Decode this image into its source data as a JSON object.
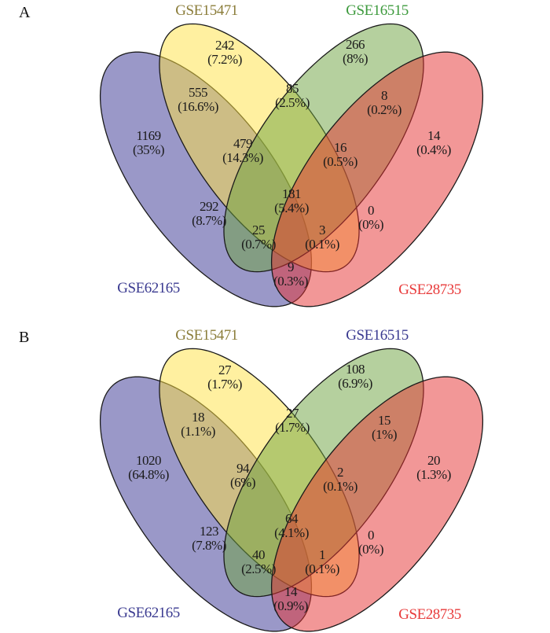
{
  "colors": {
    "GSE62165": "#353191",
    "GSE15471": "#ffe141",
    "GSE16515": "#6ba13d",
    "GSE28735": "#e52f2f",
    "label_GSE15471": "#8b7d3a",
    "label_GSE16515_A": "#3d9a3d",
    "label_GSE16515_B": "#3a3a90",
    "label_GSE62165": "#3a3a90",
    "label_GSE28735": "#e83a3a"
  },
  "panels": [
    {
      "letter": "A",
      "sets": [
        "GSE62165",
        "GSE15471",
        "GSE16515",
        "GSE28735"
      ],
      "regions": [
        {
          "id": "GSE15471-only",
          "count": "242",
          "pct": "(7.2%)"
        },
        {
          "id": "GSE16515-only",
          "count": "266",
          "pct": "(8%)"
        },
        {
          "id": "GSE62165-GSE15471",
          "count": "555",
          "pct": "(16.6%)"
        },
        {
          "id": "GSE15471-GSE16515",
          "count": "85",
          "pct": "(2.5%)"
        },
        {
          "id": "GSE16515-GSE28735",
          "count": "8",
          "pct": "(0.2%)"
        },
        {
          "id": "GSE62165-only",
          "count": "1169",
          "pct": "(35%)"
        },
        {
          "id": "GSE28735-only",
          "count": "14",
          "pct": "(0.4%)"
        },
        {
          "id": "GSE62165-GSE15471-GSE16515",
          "count": "479",
          "pct": "(14.3%)"
        },
        {
          "id": "GSE15471-GSE16515-GSE28735",
          "count": "16",
          "pct": "(0.5%)"
        },
        {
          "id": "all-four",
          "count": "181",
          "pct": "(5.4%)"
        },
        {
          "id": "GSE62165-GSE16515",
          "count": "292",
          "pct": "(8.7%)"
        },
        {
          "id": "GSE15471-GSE28735",
          "count": "0",
          "pct": "(0%)"
        },
        {
          "id": "GSE62165-GSE16515-GSE28735",
          "count": "25",
          "pct": "(0.7%)"
        },
        {
          "id": "GSE62165-GSE15471-GSE28735",
          "count": "3",
          "pct": "(0.1%)"
        },
        {
          "id": "GSE62165-GSE28735",
          "count": "9",
          "pct": "(0.3%)"
        }
      ]
    },
    {
      "letter": "B",
      "sets": [
        "GSE62165",
        "GSE15471",
        "GSE16515",
        "GSE28735"
      ],
      "regions": [
        {
          "id": "GSE15471-only",
          "count": "27",
          "pct": "(1.7%)"
        },
        {
          "id": "GSE16515-only",
          "count": "108",
          "pct": "(6.9%)"
        },
        {
          "id": "GSE62165-GSE15471",
          "count": "18",
          "pct": "(1.1%)"
        },
        {
          "id": "GSE15471-GSE16515",
          "count": "27",
          "pct": "(1.7%)"
        },
        {
          "id": "GSE16515-GSE28735",
          "count": "15",
          "pct": "(1%)"
        },
        {
          "id": "GSE62165-only",
          "count": "1020",
          "pct": "(64.8%)"
        },
        {
          "id": "GSE28735-only",
          "count": "20",
          "pct": "(1.3%)"
        },
        {
          "id": "GSE62165-GSE15471-GSE16515",
          "count": "94",
          "pct": "(6%)"
        },
        {
          "id": "GSE15471-GSE16515-GSE28735",
          "count": "2",
          "pct": "(0.1%)"
        },
        {
          "id": "all-four",
          "count": "64",
          "pct": "(4.1%)"
        },
        {
          "id": "GSE62165-GSE16515",
          "count": "123",
          "pct": "(7.8%)"
        },
        {
          "id": "GSE15471-GSE28735",
          "count": "0",
          "pct": "(0%)"
        },
        {
          "id": "GSE62165-GSE16515-GSE28735",
          "count": "40",
          "pct": "(2.5%)"
        },
        {
          "id": "GSE62165-GSE15471-GSE28735",
          "count": "1",
          "pct": "(0.1%)"
        },
        {
          "id": "GSE62165-GSE28735",
          "count": "14",
          "pct": "(0.9%)"
        }
      ]
    }
  ]
}
